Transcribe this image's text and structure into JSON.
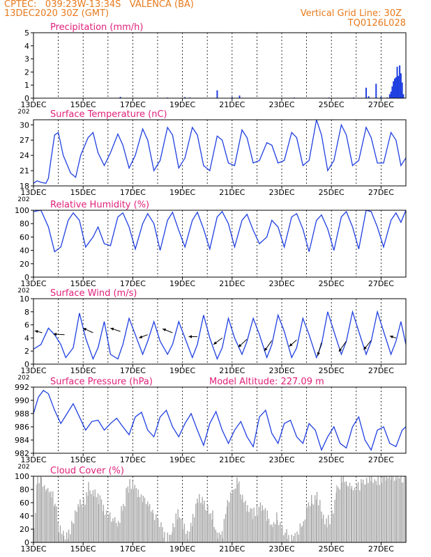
{
  "header": {
    "line1": "CPTEC:   039:23W-13:34S   VALENCA (BA)",
    "line2": "13DEC2020 30Z (GMT)",
    "grid_note": "Vertical Grid Line: 30Z",
    "code": "TQ0126L028"
  },
  "colors": {
    "header": "#e87a1c",
    "panel_title": "#e0207a",
    "series": "#1f3fe0",
    "cloud_fill": "#a8a8a8",
    "axis": "#000000"
  },
  "chart_data": [
    {
      "type": "bar",
      "title": "Precipitation (mm/h)",
      "ylim": [
        0,
        5
      ],
      "yticks": [
        "0",
        "1",
        "2",
        "3",
        "4",
        "5"
      ],
      "xlim": [
        0,
        15
      ],
      "xticks": [
        0,
        2,
        4,
        6,
        8,
        10,
        12,
        14
      ],
      "xticklabels": [
        "13DEC",
        "15DEC",
        "17DEC",
        "19DEC",
        "21DEC",
        "23DEC",
        "25DEC",
        "27DEC"
      ],
      "x_year_label": "202",
      "x": [
        3.5,
        5.4,
        6.1,
        6.3,
        7.4,
        8.0,
        8.3,
        10.5,
        11.9,
        12.9,
        13.4,
        13.5,
        13.8,
        14.0,
        14.25,
        14.35,
        14.4,
        14.45,
        14.5,
        14.55,
        14.6,
        14.65,
        14.7,
        14.75,
        14.8,
        14.85,
        14.9
      ],
      "values": [
        0.1,
        0.05,
        0.08,
        0.05,
        0.6,
        0.08,
        0.2,
        0.05,
        0.05,
        0.05,
        0.8,
        0.15,
        1.1,
        0.1,
        0.05,
        0.3,
        0.5,
        0.9,
        1.3,
        1.5,
        1.6,
        2.4,
        1.7,
        2.5,
        1.9,
        1.2,
        0.3
      ]
    },
    {
      "type": "line",
      "title": "Surface Temperature (nC)",
      "ylim": [
        18,
        31
      ],
      "yticks": [
        "18",
        "21",
        "24",
        "27",
        "30"
      ],
      "xlim": [
        0,
        15
      ],
      "xticks": [
        0,
        2,
        4,
        6,
        8,
        10,
        12,
        14
      ],
      "xticklabels": [
        "13DEC",
        "15DEC",
        "17DEC",
        "19DEC",
        "21DEC",
        "23DEC",
        "25DEC",
        "27DEC"
      ],
      "x_year_label": "202",
      "x": [
        0.0,
        0.15,
        0.3,
        0.5,
        0.6,
        0.7,
        0.85,
        1.0,
        1.2,
        1.5,
        1.7,
        1.9,
        2.2,
        2.4,
        2.6,
        2.85,
        3.1,
        3.4,
        3.6,
        3.85,
        4.1,
        4.4,
        4.6,
        4.85,
        5.1,
        5.4,
        5.6,
        5.85,
        6.1,
        6.4,
        6.6,
        6.85,
        7.1,
        7.4,
        7.6,
        7.85,
        8.1,
        8.4,
        8.6,
        8.85,
        9.1,
        9.4,
        9.6,
        9.85,
        10.1,
        10.4,
        10.6,
        10.85,
        11.1,
        11.4,
        11.6,
        11.85,
        12.1,
        12.4,
        12.6,
        12.85,
        13.1,
        13.4,
        13.6,
        13.85,
        14.1,
        14.4,
        14.6,
        14.8,
        15.0
      ],
      "values": [
        18.5,
        19.0,
        18.7,
        18.5,
        19.5,
        23.0,
        28.0,
        28.5,
        24.0,
        20.5,
        19.7,
        24.0,
        27.5,
        28.5,
        24.5,
        22.0,
        24.5,
        28.2,
        26.0,
        21.5,
        24.0,
        29.2,
        27.0,
        21.0,
        23.0,
        29.5,
        28.0,
        21.5,
        23.5,
        29.5,
        28.0,
        22.0,
        21.0,
        27.8,
        27.0,
        22.5,
        22.0,
        29.0,
        27.5,
        22.5,
        23.0,
        26.5,
        26.0,
        22.5,
        23.0,
        28.5,
        27.5,
        22.0,
        23.0,
        31.0,
        28.0,
        21.0,
        23.0,
        30.0,
        28.0,
        22.0,
        23.0,
        29.5,
        27.5,
        22.5,
        22.5,
        28.5,
        27.0,
        22.0,
        23.5
      ]
    },
    {
      "type": "line",
      "title": "Relative Humidity (%)",
      "ylim": [
        0,
        100
      ],
      "yticks": [
        "0",
        "20",
        "40",
        "60",
        "80",
        "100"
      ],
      "xlim": [
        0,
        15
      ],
      "xticks": [
        0,
        2,
        4,
        6,
        8,
        10,
        12,
        14
      ],
      "xticklabels": [
        "13DEC",
        "15DEC",
        "17DEC",
        "19DEC",
        "21DEC",
        "23DEC",
        "25DEC",
        "27DEC"
      ],
      "x_year_label": "202",
      "x": [
        0.0,
        0.3,
        0.6,
        0.85,
        1.1,
        1.4,
        1.6,
        1.85,
        2.1,
        2.4,
        2.6,
        2.85,
        3.1,
        3.4,
        3.6,
        3.85,
        4.1,
        4.4,
        4.6,
        4.85,
        5.1,
        5.4,
        5.6,
        5.85,
        6.1,
        6.4,
        6.6,
        6.85,
        7.1,
        7.4,
        7.6,
        7.85,
        8.1,
        8.4,
        8.6,
        8.85,
        9.1,
        9.4,
        9.6,
        9.85,
        10.1,
        10.4,
        10.6,
        10.85,
        11.1,
        11.4,
        11.6,
        11.85,
        12.1,
        12.4,
        12.6,
        12.85,
        13.1,
        13.4,
        13.6,
        13.85,
        14.1,
        14.4,
        14.6,
        14.8,
        15.0
      ],
      "values": [
        98,
        100,
        75,
        38,
        45,
        85,
        96,
        85,
        45,
        60,
        75,
        50,
        47,
        90,
        96,
        75,
        42,
        80,
        95,
        80,
        40,
        85,
        97,
        70,
        45,
        85,
        97,
        72,
        42,
        90,
        98,
        80,
        45,
        85,
        94,
        70,
        50,
        60,
        85,
        75,
        45,
        90,
        95,
        72,
        38,
        85,
        93,
        72,
        40,
        90,
        98,
        75,
        42,
        100,
        98,
        75,
        45,
        85,
        96,
        82,
        100
      ]
    },
    {
      "type": "line",
      "title": "Surface Wind (m/s)",
      "ylim": [
        0,
        10
      ],
      "yticks": [
        "0",
        "2",
        "4",
        "6",
        "8",
        "10"
      ],
      "xlim": [
        0,
        15
      ],
      "xticks": [
        0,
        2,
        4,
        6,
        8,
        10,
        12,
        14
      ],
      "xticklabels": [
        "13DEC",
        "15DEC",
        "17DEC",
        "19DEC",
        "21DEC",
        "23DEC",
        "25DEC",
        "27DEC"
      ],
      "x_year_label": "202",
      "x": [
        0.0,
        0.3,
        0.6,
        0.85,
        1.1,
        1.3,
        1.6,
        1.85,
        2.1,
        2.4,
        2.6,
        2.85,
        3.1,
        3.4,
        3.6,
        3.85,
        4.1,
        4.4,
        4.6,
        4.85,
        5.1,
        5.4,
        5.6,
        5.85,
        6.1,
        6.4,
        6.6,
        6.85,
        7.1,
        7.4,
        7.6,
        7.85,
        8.1,
        8.4,
        8.6,
        8.85,
        9.1,
        9.4,
        9.6,
        9.85,
        10.1,
        10.4,
        10.6,
        10.85,
        11.1,
        11.4,
        11.6,
        11.85,
        12.1,
        12.4,
        12.6,
        12.85,
        13.1,
        13.4,
        13.6,
        13.85,
        14.1,
        14.4,
        14.6,
        14.8,
        15.0
      ],
      "values": [
        2.3,
        3.0,
        5.5,
        4.5,
        3.0,
        1.0,
        2.5,
        7.8,
        4.0,
        0.8,
        2.5,
        6.5,
        1.5,
        0.8,
        3.0,
        7.0,
        4.5,
        1.5,
        3.5,
        6.5,
        3.5,
        1.5,
        3.0,
        6.5,
        4.0,
        1.0,
        3.0,
        7.5,
        4.0,
        0.8,
        2.5,
        7.0,
        4.0,
        1.5,
        3.5,
        7.0,
        4.5,
        1.0,
        3.0,
        7.5,
        5.0,
        1.0,
        2.5,
        7.0,
        4.5,
        1.0,
        3.0,
        8.0,
        5.0,
        1.5,
        3.5,
        8.0,
        5.0,
        1.5,
        3.5,
        8.0,
        5.0,
        1.5,
        3.5,
        6.5,
        3.0
      ],
      "vectors": {
        "x": [
          0.35,
          1.25,
          2.4,
          3.5,
          4.6,
          5.6,
          6.6,
          7.6,
          8.6,
          9.6,
          10.6,
          11.6,
          12.6,
          13.6,
          14.6
        ],
        "y": [
          4.8,
          4.5,
          4.8,
          5.0,
          4.5,
          4.8,
          4.2,
          4.0,
          3.8,
          3.6,
          3.7,
          3.3,
          3.5,
          3.6,
          4.0
        ],
        "dx_days": [
          -0.3,
          -0.45,
          -0.4,
          -0.4,
          -0.35,
          -0.4,
          -0.35,
          -0.35,
          -0.35,
          -0.3,
          -0.3,
          -0.15,
          -0.3,
          -0.3,
          -0.25
        ],
        "dy_units": [
          0.3,
          0.1,
          0.7,
          0.5,
          -0.5,
          0.6,
          0.0,
          -1.0,
          -1.2,
          -1.6,
          -1.0,
          -2.0,
          -1.6,
          -1.4,
          0.3
        ]
      }
    },
    {
      "type": "line",
      "title": "Surface Pressure (hPa)",
      "annotation": "Model Altitude: 227.09 m",
      "ylim": [
        982,
        992
      ],
      "yticks": [
        "982",
        "984",
        "986",
        "988",
        "990",
        "992"
      ],
      "xlim": [
        0,
        15
      ],
      "xticks": [
        0,
        2,
        4,
        6,
        8,
        10,
        12,
        14
      ],
      "xticklabels": [
        "13DEC",
        "15DEC",
        "17DEC",
        "19DEC",
        "21DEC",
        "23DEC",
        "25DEC",
        "27DEC"
      ],
      "x_year_label": "202",
      "x": [
        0.0,
        0.2,
        0.4,
        0.6,
        0.85,
        1.1,
        1.35,
        1.6,
        1.85,
        2.1,
        2.35,
        2.6,
        2.85,
        3.1,
        3.35,
        3.6,
        3.85,
        4.1,
        4.35,
        4.6,
        4.85,
        5.1,
        5.35,
        5.6,
        5.85,
        6.1,
        6.35,
        6.6,
        6.85,
        7.1,
        7.35,
        7.6,
        7.85,
        8.1,
        8.35,
        8.6,
        8.85,
        9.1,
        9.35,
        9.6,
        9.85,
        10.1,
        10.35,
        10.6,
        10.85,
        11.1,
        11.35,
        11.6,
        11.85,
        12.1,
        12.35,
        12.6,
        12.85,
        13.1,
        13.35,
        13.6,
        13.85,
        14.1,
        14.35,
        14.6,
        14.85,
        15.0
      ],
      "values": [
        988.0,
        990.5,
        991.5,
        991.0,
        988.5,
        986.5,
        988.0,
        989.5,
        987.5,
        985.5,
        986.8,
        987.0,
        985.5,
        986.5,
        987.3,
        986.0,
        984.8,
        987.5,
        988.2,
        985.5,
        984.5,
        987.5,
        988.5,
        986.0,
        984.5,
        986.5,
        988.0,
        985.5,
        983.2,
        986.5,
        988.3,
        985.5,
        983.5,
        985.5,
        986.8,
        984.5,
        983.0,
        987.5,
        988.5,
        985.0,
        983.5,
        986.5,
        987.0,
        984.5,
        983.5,
        986.5,
        985.5,
        982.5,
        984.5,
        986.0,
        983.5,
        982.8,
        986.0,
        987.5,
        984.0,
        982.5,
        985.5,
        986.0,
        983.5,
        983.0,
        985.5,
        986.0
      ]
    },
    {
      "type": "area",
      "title": "Cloud Cover (%)",
      "ylim": [
        0,
        100
      ],
      "yticks": [
        "0",
        "20",
        "40",
        "60",
        "80",
        "100"
      ],
      "xlim": [
        0,
        15
      ],
      "xticks": [
        0,
        2,
        4,
        6,
        8,
        10,
        12,
        14
      ],
      "xticklabels": [
        "13DEC",
        "15DEC",
        "17DEC",
        "19DEC",
        "21DEC",
        "23DEC",
        "25DEC",
        "27DEC"
      ],
      "x": [
        0.0,
        0.15,
        0.3,
        0.5,
        0.7,
        0.85,
        1.0,
        1.2,
        1.4,
        1.6,
        1.8,
        2.0,
        2.2,
        2.4,
        2.6,
        2.8,
        3.0,
        3.2,
        3.4,
        3.6,
        3.8,
        4.0,
        4.2,
        4.4,
        4.6,
        4.8,
        5.0,
        5.2,
        5.4,
        5.6,
        5.8,
        6.0,
        6.2,
        6.4,
        6.6,
        6.8,
        7.0,
        7.2,
        7.4,
        7.6,
        7.8,
        8.0,
        8.2,
        8.4,
        8.6,
        8.8,
        9.0,
        9.2,
        9.4,
        9.6,
        9.8,
        10.0,
        10.2,
        10.4,
        10.6,
        10.8,
        11.0,
        11.2,
        11.4,
        11.6,
        11.8,
        12.0,
        12.2,
        12.4,
        12.6,
        12.8,
        13.0,
        13.2,
        13.4,
        13.6,
        13.8,
        14.0,
        14.2,
        14.4,
        14.6,
        14.8,
        15.0
      ],
      "values": [
        20,
        98,
        95,
        80,
        75,
        60,
        25,
        10,
        15,
        35,
        55,
        60,
        82,
        75,
        65,
        55,
        40,
        35,
        30,
        55,
        85,
        90,
        75,
        65,
        55,
        45,
        35,
        15,
        5,
        25,
        45,
        30,
        15,
        35,
        70,
        65,
        50,
        40,
        10,
        15,
        60,
        75,
        90,
        70,
        55,
        40,
        50,
        55,
        40,
        25,
        40,
        20,
        10,
        5,
        10,
        25,
        55,
        65,
        70,
        45,
        30,
        40,
        80,
        95,
        90,
        85,
        80,
        92,
        95,
        98,
        90,
        98,
        100,
        99,
        100,
        99,
        100
      ]
    }
  ]
}
